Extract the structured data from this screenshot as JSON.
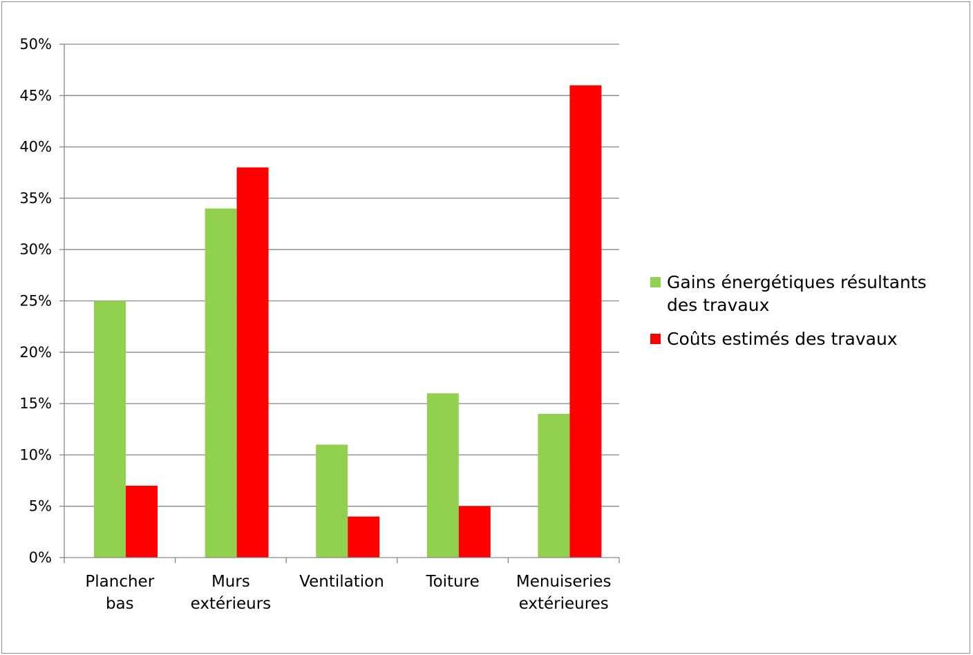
{
  "chart_data": {
    "type": "bar",
    "categories": [
      [
        "Plancher",
        "bas"
      ],
      [
        "Murs",
        "extérieurs"
      ],
      [
        "Ventilation"
      ],
      [
        "Toiture"
      ],
      [
        "Menuiseries",
        "extérieures"
      ]
    ],
    "series": [
      {
        "name": "Gains énergétiques résultants des travaux",
        "name_lines": [
          "Gains énergétiques résultants",
          "des travaux"
        ],
        "color": "#92d050",
        "values": [
          25,
          34,
          11,
          16,
          14
        ]
      },
      {
        "name": "Coûts estimés des travaux",
        "name_lines": [
          "Coûts estimés des travaux"
        ],
        "color": "#ff0000",
        "values": [
          7,
          38,
          4,
          5,
          46
        ]
      }
    ],
    "ylim": [
      0,
      50
    ],
    "ytick_step": 5,
    "ytick_format": "percent",
    "grid": true,
    "legend_position": "right",
    "title": "",
    "xlabel": "",
    "ylabel": ""
  }
}
